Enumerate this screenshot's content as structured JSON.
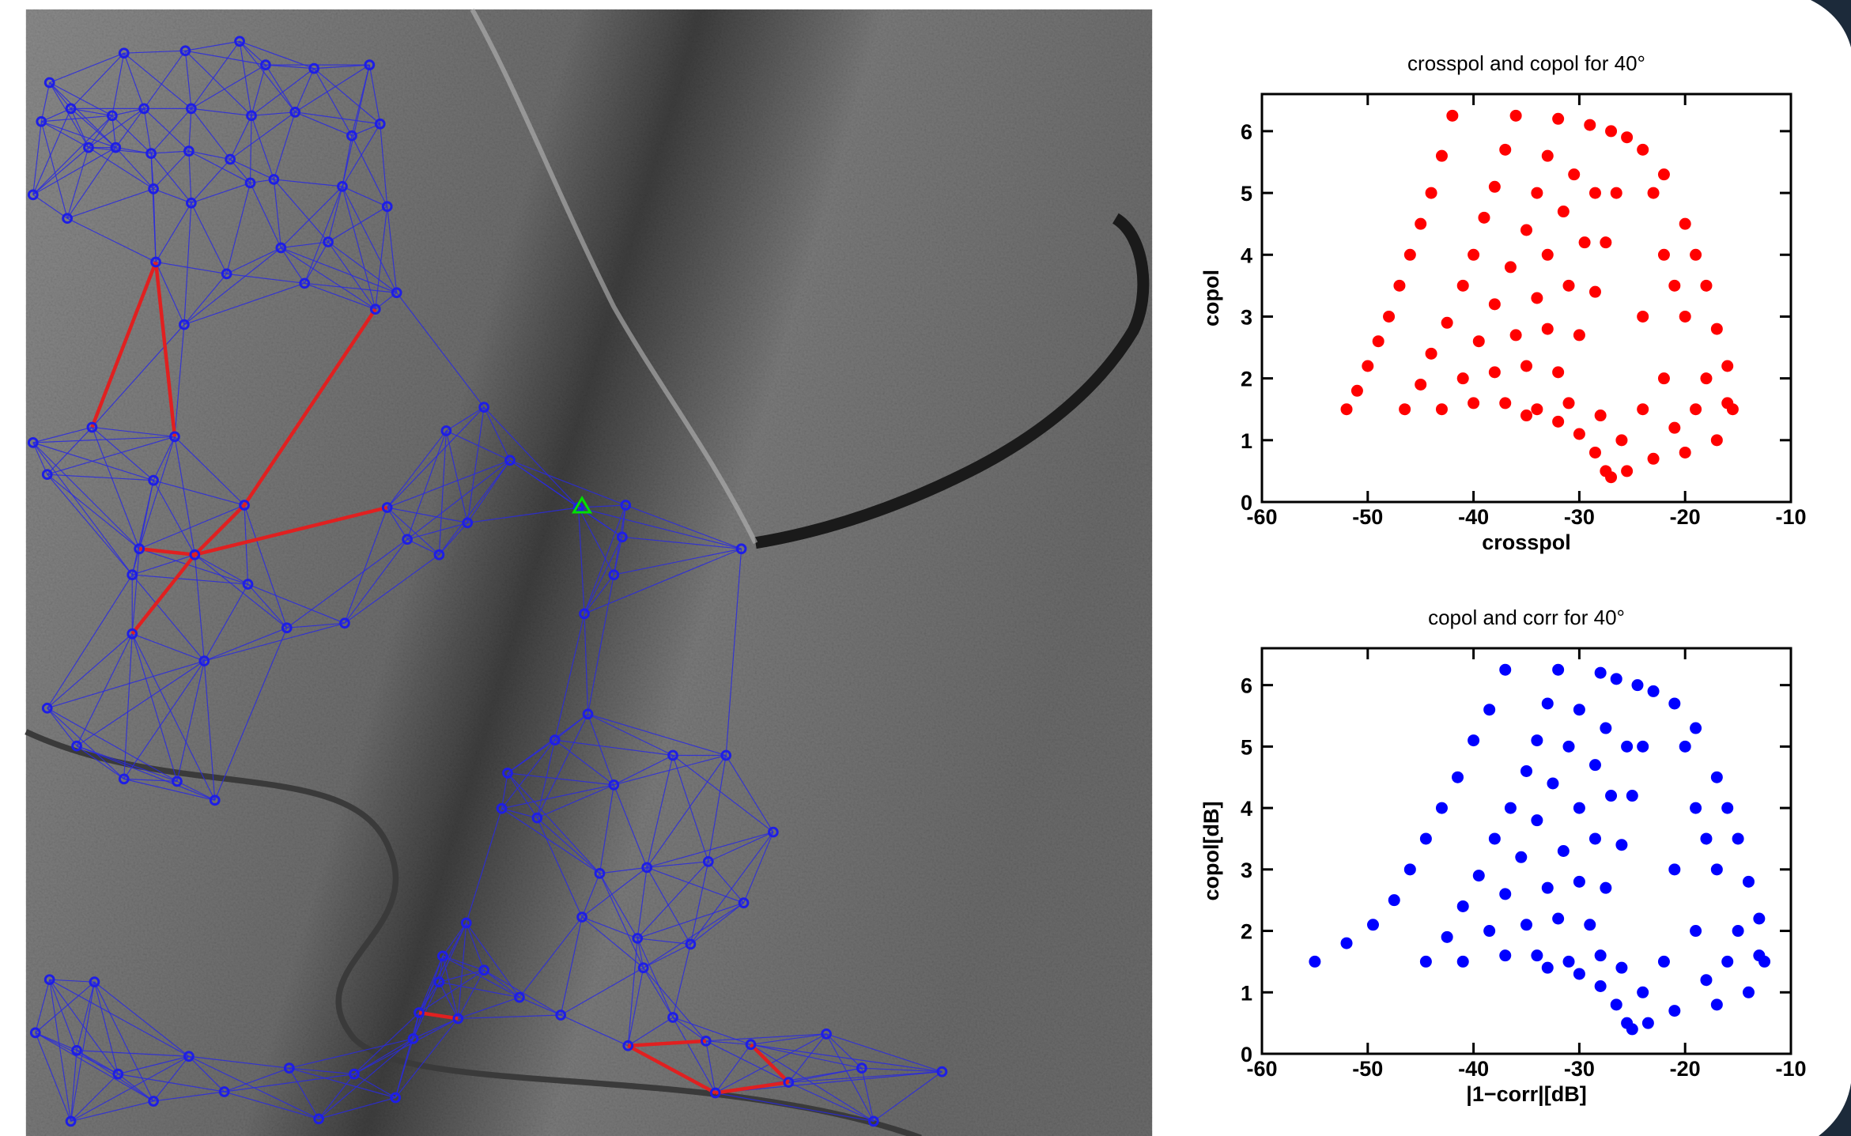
{
  "chart_data": [
    {
      "type": "scatter",
      "title": "crosspol and copol for 40°",
      "x_label": "crosspol",
      "y_label": "copol",
      "color": "#ff0000",
      "xlim": [
        -60,
        -10
      ],
      "ylim": [
        0,
        6.6
      ],
      "xticks": [
        -60,
        -50,
        -40,
        -30,
        -20,
        -10
      ],
      "yticks": [
        0,
        1,
        2,
        3,
        4,
        5,
        6
      ],
      "x": [
        -52,
        -51,
        -50,
        -49,
        -48,
        -47,
        -46,
        -45,
        -44,
        -43,
        -42,
        -46.5,
        -45,
        -44,
        -42.5,
        -41,
        -40,
        -39,
        -38,
        -37,
        -36,
        -43,
        -41,
        -39.5,
        -38,
        -36.5,
        -35,
        -34,
        -33,
        -32,
        -40,
        -38,
        -36,
        -34,
        -33,
        -31.5,
        -30.5,
        -29,
        -37,
        -35,
        -33,
        -31,
        -29.5,
        -28.5,
        -27,
        -34,
        -32,
        -30,
        -28.5,
        -27.5,
        -26.5,
        -25.5,
        -35,
        -32,
        -30,
        -28.5,
        -27.5,
        -27,
        -31,
        -28,
        -26,
        -25.5,
        -24,
        -22,
        -20,
        -18,
        -16,
        -15.5,
        -17,
        -20,
        -23,
        -22,
        -20,
        -18,
        -22,
        -24,
        -24,
        -19,
        -21,
        -17,
        -19,
        -16,
        -23,
        -21
      ],
      "values": [
        1.5,
        1.8,
        2.2,
        2.6,
        3.0,
        3.5,
        4.0,
        4.5,
        5.0,
        5.6,
        6.25,
        1.5,
        1.9,
        2.4,
        2.9,
        3.5,
        4.0,
        4.6,
        5.1,
        5.7,
        6.25,
        1.5,
        2.0,
        2.6,
        3.2,
        3.8,
        4.4,
        5.0,
        5.6,
        6.2,
        1.6,
        2.1,
        2.7,
        3.3,
        4.0,
        4.7,
        5.3,
        6.1,
        1.6,
        2.2,
        2.8,
        3.5,
        4.2,
        5.0,
        6.0,
        1.5,
        2.1,
        2.7,
        3.4,
        4.2,
        5.0,
        5.9,
        1.4,
        1.3,
        1.1,
        0.8,
        0.5,
        0.4,
        1.6,
        1.4,
        1.0,
        0.5,
        5.7,
        5.3,
        4.5,
        3.5,
        2.2,
        1.5,
        1.0,
        0.8,
        0.7,
        2.0,
        3.0,
        2.0,
        4.0,
        3.0,
        1.5,
        1.5,
        1.2,
        2.8,
        4.0,
        1.6,
        5.0,
        3.5
      ]
    },
    {
      "type": "scatter",
      "title": "copol and corr for 40°",
      "x_label": "|1−corr|[dB]",
      "y_label": "copol[dB]",
      "color": "#0000ff",
      "xlim": [
        -60,
        -10
      ],
      "ylim": [
        0,
        6.6
      ],
      "xticks": [
        -60,
        -50,
        -40,
        -30,
        -20,
        -10
      ],
      "yticks": [
        0,
        1,
        2,
        3,
        4,
        5,
        6
      ],
      "x": [
        -55,
        -52,
        -49.5,
        -47.5,
        -46,
        -44.5,
        -43,
        -41.5,
        -40,
        -38.5,
        -37,
        -44.5,
        -42.5,
        -41,
        -39.5,
        -38,
        -36.5,
        -35,
        -34,
        -33,
        -32,
        -41,
        -38.5,
        -37,
        -35.5,
        -34,
        -32.5,
        -31,
        -30,
        -28,
        -37,
        -35,
        -33,
        -31.5,
        -30,
        -28.5,
        -27.5,
        -26.5,
        -34,
        -32,
        -30,
        -28.5,
        -27,
        -25.5,
        -24.5,
        -31,
        -29,
        -27.5,
        -26,
        -25,
        -24,
        -23,
        -33,
        -30,
        -28,
        -26.5,
        -25.5,
        -25,
        -28,
        -26,
        -24,
        -23.5,
        -21,
        -19,
        -17,
        -15,
        -13,
        -12.5,
        -14,
        -17,
        -21,
        -19,
        -17,
        -15,
        -19,
        -21,
        -22,
        -16,
        -18,
        -14,
        -16,
        -13,
        -20,
        -18
      ],
      "values": [
        1.5,
        1.8,
        2.1,
        2.5,
        3.0,
        3.5,
        4.0,
        4.5,
        5.1,
        5.6,
        6.25,
        1.5,
        1.9,
        2.4,
        2.9,
        3.5,
        4.0,
        4.6,
        5.1,
        5.7,
        6.25,
        1.5,
        2.0,
        2.6,
        3.2,
        3.8,
        4.4,
        5.0,
        5.6,
        6.2,
        1.6,
        2.1,
        2.7,
        3.3,
        4.0,
        4.7,
        5.3,
        6.1,
        1.6,
        2.2,
        2.8,
        3.5,
        4.2,
        5.0,
        6.0,
        1.5,
        2.1,
        2.7,
        3.4,
        4.2,
        5.0,
        5.9,
        1.4,
        1.3,
        1.1,
        0.8,
        0.5,
        0.4,
        1.6,
        1.4,
        1.0,
        0.5,
        5.7,
        5.3,
        4.5,
        3.5,
        2.2,
        1.5,
        1.0,
        0.8,
        0.7,
        2.0,
        3.0,
        2.0,
        4.0,
        3.0,
        1.5,
        1.5,
        1.2,
        2.8,
        4.0,
        1.6,
        5.0,
        3.5
      ]
    }
  ]
}
